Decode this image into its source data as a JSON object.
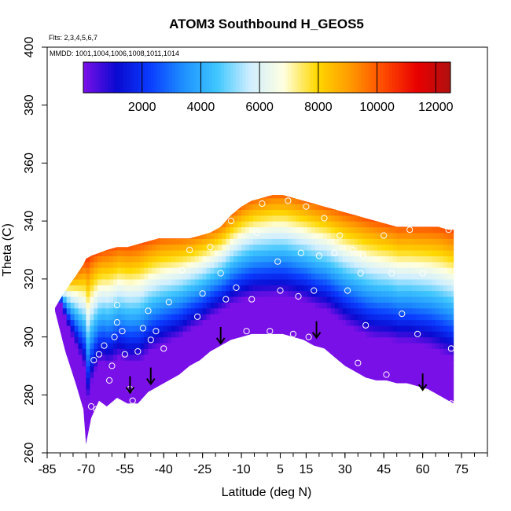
{
  "chart_data": {
    "type": "heatmap",
    "title": "ATOM3 Southbound H_GEOS5",
    "subtitle_flights": "Flts: 2,3,4,5,6,7",
    "subtitle_dates": "MMDD: 1001,1004,1006,1008,1011,1014",
    "xlabel": "Latitude (deg N)",
    "ylabel": "Theta (C)",
    "xlim": [
      -85,
      85
    ],
    "ylim": [
      260,
      400
    ],
    "x_ticks_major": [
      -85,
      -70,
      -55,
      -40,
      -25,
      -10,
      5,
      15,
      30,
      45,
      60,
      75
    ],
    "x_tick_labels": [
      "-85",
      "-70",
      "-55",
      "-40",
      "-25",
      "-10",
      "5",
      "15",
      "30",
      "45",
      "60",
      "75"
    ],
    "y_ticks": [
      260,
      280,
      300,
      320,
      340,
      360,
      380,
      400
    ],
    "y_tick_labels": [
      "260",
      "280",
      "300",
      "320",
      "340",
      "360",
      "380",
      "400"
    ],
    "colorbar": {
      "min": 0,
      "max": 12500,
      "ticks": [
        2000,
        4000,
        6000,
        8000,
        10000,
        12000
      ],
      "tick_labels": [
        "2000",
        "4000",
        "6000",
        "8000",
        "10000",
        "12000"
      ],
      "colors": [
        "#7a10e8",
        "#0a0ad0",
        "#0a3cff",
        "#1e90ff",
        "#3fc6ff",
        "#cfeeff",
        "#ffffe0",
        "#ffd800",
        "#ff9a00",
        "#ff4a00",
        "#e80000",
        "#b01010"
      ]
    },
    "envelope": {
      "latitude": [
        -82,
        -78,
        -74,
        -71,
        -70,
        -68,
        -65,
        -62,
        -58,
        -54,
        -50,
        -46,
        -42,
        -38,
        -34,
        -30,
        -26,
        -22,
        -18,
        -14,
        -10,
        -6,
        -2,
        2,
        6,
        10,
        14,
        18,
        22,
        26,
        30,
        34,
        38,
        42,
        46,
        50,
        54,
        58,
        62,
        66,
        70,
        72
      ],
      "theta_bottom": [
        309,
        295,
        284,
        275,
        263,
        272,
        278,
        276,
        279,
        277,
        277,
        281,
        283,
        285,
        287,
        290,
        292,
        295,
        297,
        299,
        300,
        301,
        301,
        301,
        301,
        300,
        299,
        297,
        296,
        293,
        290,
        288,
        286,
        285,
        285,
        284,
        284,
        283,
        282,
        280,
        278,
        277
      ],
      "theta_top": [
        310,
        316,
        321,
        325,
        327,
        328,
        329,
        330,
        331,
        331,
        332,
        333,
        334,
        334,
        334,
        334,
        335,
        336,
        338,
        342,
        345,
        347,
        348,
        349,
        349,
        348,
        347,
        346,
        345,
        344,
        343,
        342,
        341,
        340,
        339,
        338,
        338,
        338,
        338,
        338,
        337,
        337
      ]
    },
    "observation_points": [
      {
        "latitude": -68,
        "theta": 276
      },
      {
        "latitude": -66,
        "theta": 275
      },
      {
        "latitude": -67,
        "theta": 292
      },
      {
        "latitude": -65,
        "theta": 294
      },
      {
        "latitude": -63,
        "theta": 297
      },
      {
        "latitude": -61,
        "theta": 285
      },
      {
        "latitude": -60,
        "theta": 290
      },
      {
        "latitude": -59,
        "theta": 300
      },
      {
        "latitude": -58,
        "theta": 305
      },
      {
        "latitude": -58,
        "theta": 311
      },
      {
        "latitude": -56,
        "theta": 302
      },
      {
        "latitude": -55,
        "theta": 294
      },
      {
        "latitude": -53,
        "theta": 282
      },
      {
        "latitude": -52,
        "theta": 278
      },
      {
        "latitude": -50,
        "theta": 295
      },
      {
        "latitude": -48,
        "theta": 303
      },
      {
        "latitude": -46,
        "theta": 309
      },
      {
        "latitude": -45,
        "theta": 299
      },
      {
        "latitude": -43,
        "theta": 302
      },
      {
        "latitude": -40,
        "theta": 296
      },
      {
        "latitude": -38,
        "theta": 312
      },
      {
        "latitude": -33,
        "theta": 323
      },
      {
        "latitude": -30,
        "theta": 330
      },
      {
        "latitude": -27,
        "theta": 307
      },
      {
        "latitude": -25,
        "theta": 315
      },
      {
        "latitude": -22,
        "theta": 331
      },
      {
        "latitude": -18,
        "theta": 322
      },
      {
        "latitude": -16,
        "theta": 313
      },
      {
        "latitude": -14,
        "theta": 340
      },
      {
        "latitude": -12,
        "theta": 317
      },
      {
        "latitude": -10,
        "theta": 348
      },
      {
        "latitude": -8,
        "theta": 302
      },
      {
        "latitude": -6,
        "theta": 313
      },
      {
        "latitude": -4,
        "theta": 336
      },
      {
        "latitude": -2,
        "theta": 346
      },
      {
        "latitude": 1,
        "theta": 302
      },
      {
        "latitude": 4,
        "theta": 326
      },
      {
        "latitude": 5,
        "theta": 316
      },
      {
        "latitude": 8,
        "theta": 347
      },
      {
        "latitude": 10,
        "theta": 301
      },
      {
        "latitude": 12,
        "theta": 314
      },
      {
        "latitude": 13,
        "theta": 329
      },
      {
        "latitude": 15,
        "theta": 345
      },
      {
        "latitude": 16,
        "theta": 300
      },
      {
        "latitude": 18,
        "theta": 316
      },
      {
        "latitude": 20,
        "theta": 328
      },
      {
        "latitude": 22,
        "theta": 341
      },
      {
        "latitude": 25,
        "theta": 346
      },
      {
        "latitude": 26,
        "theta": 329
      },
      {
        "latitude": 28,
        "theta": 335
      },
      {
        "latitude": 31,
        "theta": 316
      },
      {
        "latitude": 33,
        "theta": 330
      },
      {
        "latitude": 35,
        "theta": 291
      },
      {
        "latitude": 36,
        "theta": 322
      },
      {
        "latitude": 37,
        "theta": 328
      },
      {
        "latitude": 38,
        "theta": 304
      },
      {
        "latitude": 45,
        "theta": 335
      },
      {
        "latitude": 46,
        "theta": 287
      },
      {
        "latitude": 48,
        "theta": 322
      },
      {
        "latitude": 52,
        "theta": 308
      },
      {
        "latitude": 55,
        "theta": 337
      },
      {
        "latitude": 58,
        "theta": 301
      },
      {
        "latitude": 60,
        "theta": 322
      },
      {
        "latitude": 70,
        "theta": 337
      },
      {
        "latitude": 71,
        "theta": 296
      },
      {
        "latitude": 71,
        "theta": 277
      }
    ],
    "tropopause_arrows": [
      {
        "latitude": -53,
        "theta": 281
      },
      {
        "latitude": -45,
        "theta": 284
      },
      {
        "latitude": -18,
        "theta": 298
      },
      {
        "latitude": 19,
        "theta": 300
      },
      {
        "latitude": 60,
        "theta": 282
      }
    ]
  }
}
